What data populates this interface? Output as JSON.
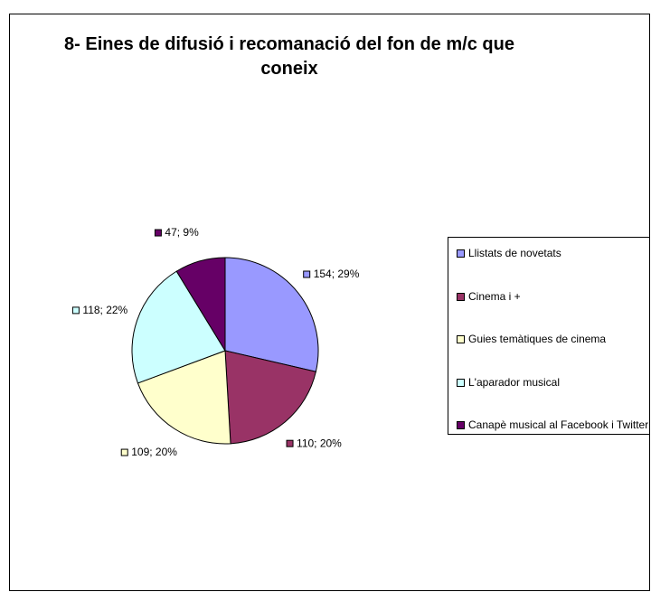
{
  "chart_data": {
    "type": "pie",
    "title": "8- Eines de difusió i recomanació del fon de m/c que coneix",
    "categories": [
      "Llistats de novetats",
      "Cinema i +",
      "Guies temàtiques de cinema",
      "L'aparador musical",
      "Canapè musical al Facebook i Twitter"
    ],
    "values": [
      154,
      110,
      109,
      118,
      47
    ],
    "value_labels": [
      "154; 29%",
      "110; 20%",
      "109; 20%",
      "118; 22%",
      "47; 9%"
    ],
    "colors": [
      "#9999ff",
      "#993366",
      "#ffffcc",
      "#ccffff",
      "#660066"
    ],
    "legend": "right"
  }
}
